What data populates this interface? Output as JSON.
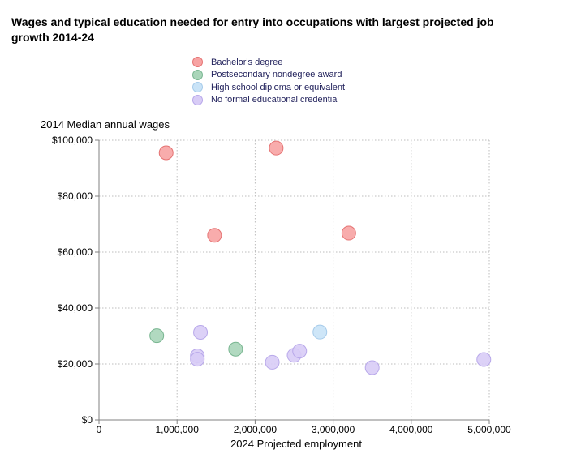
{
  "chart_data": {
    "type": "scatter",
    "title": "Wages and typical education needed for entry into occupations with largest projected job growth 2014-24",
    "xlabel": "2024 Projected employment",
    "ylabel": "2014 Median annual wages",
    "xlim": [
      0,
      5000000
    ],
    "ylim": [
      0,
      100000
    ],
    "x_ticks": [
      0,
      1000000,
      2000000,
      3000000,
      4000000,
      5000000
    ],
    "x_tick_labels": [
      "0",
      "1,000,000",
      "2,000,000",
      "3,000,000",
      "4,000,000",
      "5,000,000"
    ],
    "y_ticks": [
      0,
      20000,
      40000,
      60000,
      80000,
      100000
    ],
    "y_tick_labels": [
      "$0",
      "$20,000",
      "$40,000",
      "$60,000",
      "$80,000",
      "$100,000"
    ],
    "grid": true,
    "legend_position": "top-center",
    "series": [
      {
        "name": "Bachelor's degree",
        "fill": "#f7a3a3",
        "stroke": "#e57373",
        "points": [
          {
            "x": 860000,
            "y": 95500
          },
          {
            "x": 2270000,
            "y": 97200
          },
          {
            "x": 1480000,
            "y": 66000
          },
          {
            "x": 3200000,
            "y": 66800
          }
        ]
      },
      {
        "name": "Postsecondary nondegree award",
        "fill": "#a9d5b9",
        "stroke": "#79b691",
        "points": [
          {
            "x": 740000,
            "y": 30100
          },
          {
            "x": 1750000,
            "y": 25300
          }
        ]
      },
      {
        "name": "High school diploma or equivalent",
        "fill": "#c9e3f7",
        "stroke": "#a6cbea",
        "points": [
          {
            "x": 2830000,
            "y": 31400
          }
        ]
      },
      {
        "name": "No formal educational credential",
        "fill": "#d8ccf6",
        "stroke": "#b8a8ea",
        "points": [
          {
            "x": 1300000,
            "y": 31300
          },
          {
            "x": 1260000,
            "y": 22900
          },
          {
            "x": 1260000,
            "y": 21700
          },
          {
            "x": 2220000,
            "y": 20600
          },
          {
            "x": 2500000,
            "y": 23100
          },
          {
            "x": 2570000,
            "y": 24600
          },
          {
            "x": 3500000,
            "y": 18700
          },
          {
            "x": 4930000,
            "y": 21600
          }
        ]
      }
    ]
  }
}
